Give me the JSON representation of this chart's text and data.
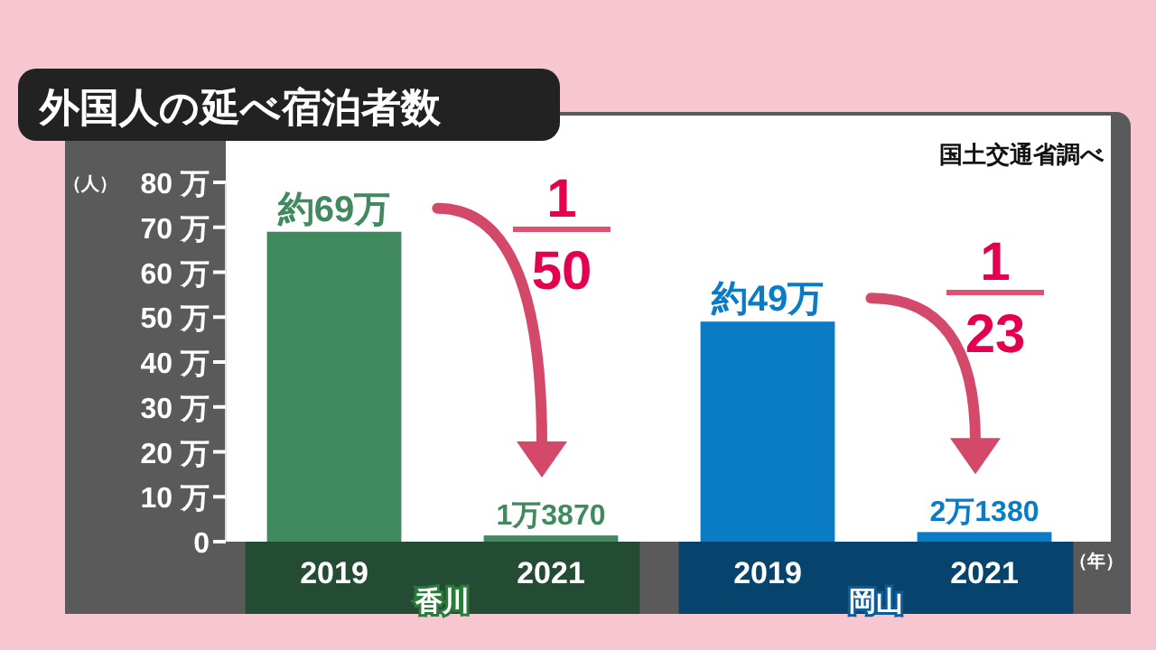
{
  "chart_data": {
    "type": "bar",
    "title": "外国人の延べ宿泊者数",
    "ylabel": "（人）",
    "xlabel": "（年）",
    "categories": [
      "2019",
      "2021",
      "2019",
      "2021"
    ],
    "values": [
      69,
      1.387,
      49,
      2.138
    ],
    "colors": [
      "#41895f",
      "#41895f",
      "#0a7cc6",
      "#0a7cc6"
    ],
    "value_labels": [
      "約69万",
      "1万3870",
      "約49万",
      "2万1380"
    ],
    "ylim": [
      0,
      80
    ],
    "yticks": [
      0,
      {
        "value": 10,
        "label": "10 万"
      },
      {
        "value": 20,
        "label": "20 万"
      },
      {
        "value": 30,
        "label": "30 万"
      },
      {
        "value": 40,
        "label": "40 万"
      },
      {
        "value": 50,
        "label": "50 万"
      },
      {
        "value": 60,
        "label": "60 万"
      },
      {
        "value": 70,
        "label": "70 万"
      },
      {
        "value": 80,
        "label": "80 万"
      }
    ],
    "annotations": [
      "国土交通省調べ",
      "香川",
      "岡山",
      "1",
      "50",
      "1",
      "23"
    ]
  }
}
